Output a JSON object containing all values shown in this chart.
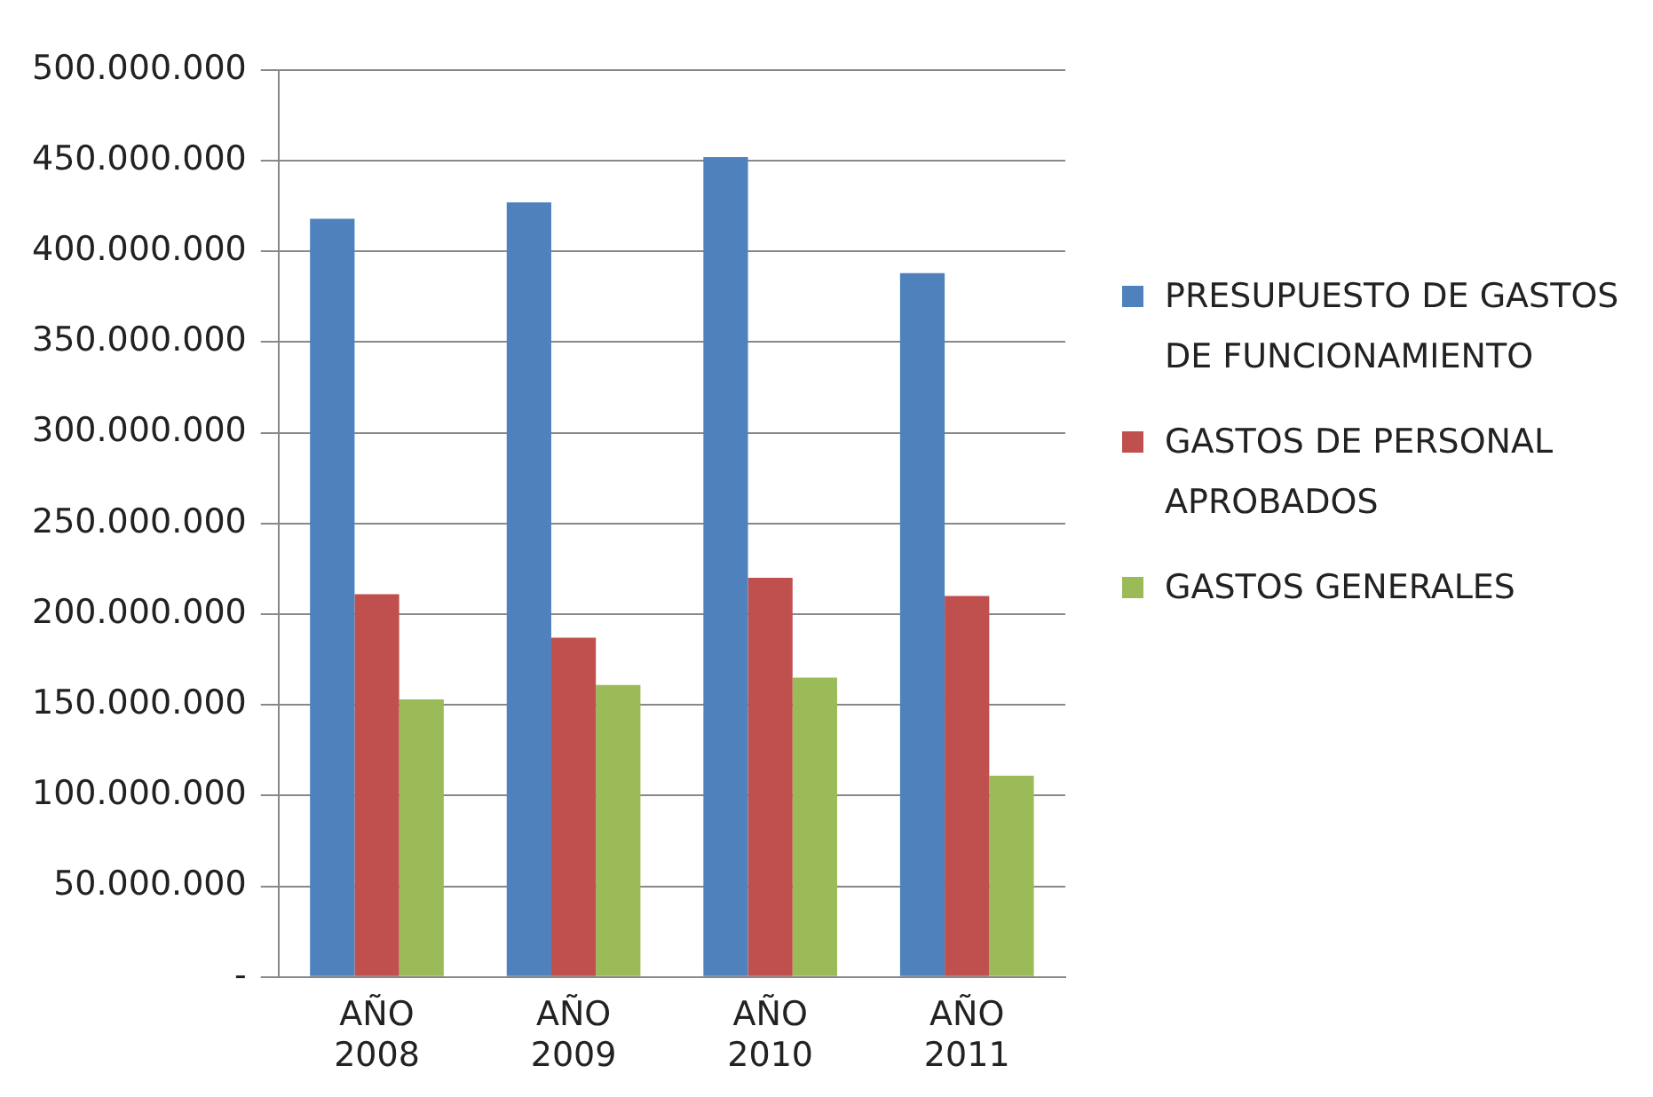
{
  "chart_data": {
    "type": "bar",
    "categories": [
      "AÑO 2008",
      "AÑO 2009",
      "AÑO 2010",
      "AÑO 2011"
    ],
    "series": [
      {
        "name": "PRESUPUESTO DE GASTOS DE FUNCIONAMIENTO",
        "color": "#4f81bd",
        "values": [
          418000000,
          427000000,
          452000000,
          388000000
        ]
      },
      {
        "name": "GASTOS DE PERSONAL APROBADOS",
        "color": "#c0504d",
        "values": [
          211000000,
          187000000,
          220000000,
          210000000
        ]
      },
      {
        "name": "GASTOS GENERALES",
        "color": "#9bbb59",
        "values": [
          153000000,
          161000000,
          165000000,
          111000000
        ]
      }
    ],
    "ylim": [
      0,
      500000000
    ],
    "yticks": [
      {
        "value": 0,
        "label": "-"
      },
      {
        "value": 50000000,
        "label": "50.000.000"
      },
      {
        "value": 100000000,
        "label": "100.000.000"
      },
      {
        "value": 150000000,
        "label": "150.000.000"
      },
      {
        "value": 200000000,
        "label": "200.000.000"
      },
      {
        "value": 250000000,
        "label": "250.000.000"
      },
      {
        "value": 300000000,
        "label": "300.000.000"
      },
      {
        "value": 350000000,
        "label": "350.000.000"
      },
      {
        "value": 400000000,
        "label": "400.000.000"
      },
      {
        "value": 450000000,
        "label": "450.000.000"
      },
      {
        "value": 500000000,
        "label": "500.000.000"
      }
    ],
    "grid": "y",
    "legend": "right"
  }
}
